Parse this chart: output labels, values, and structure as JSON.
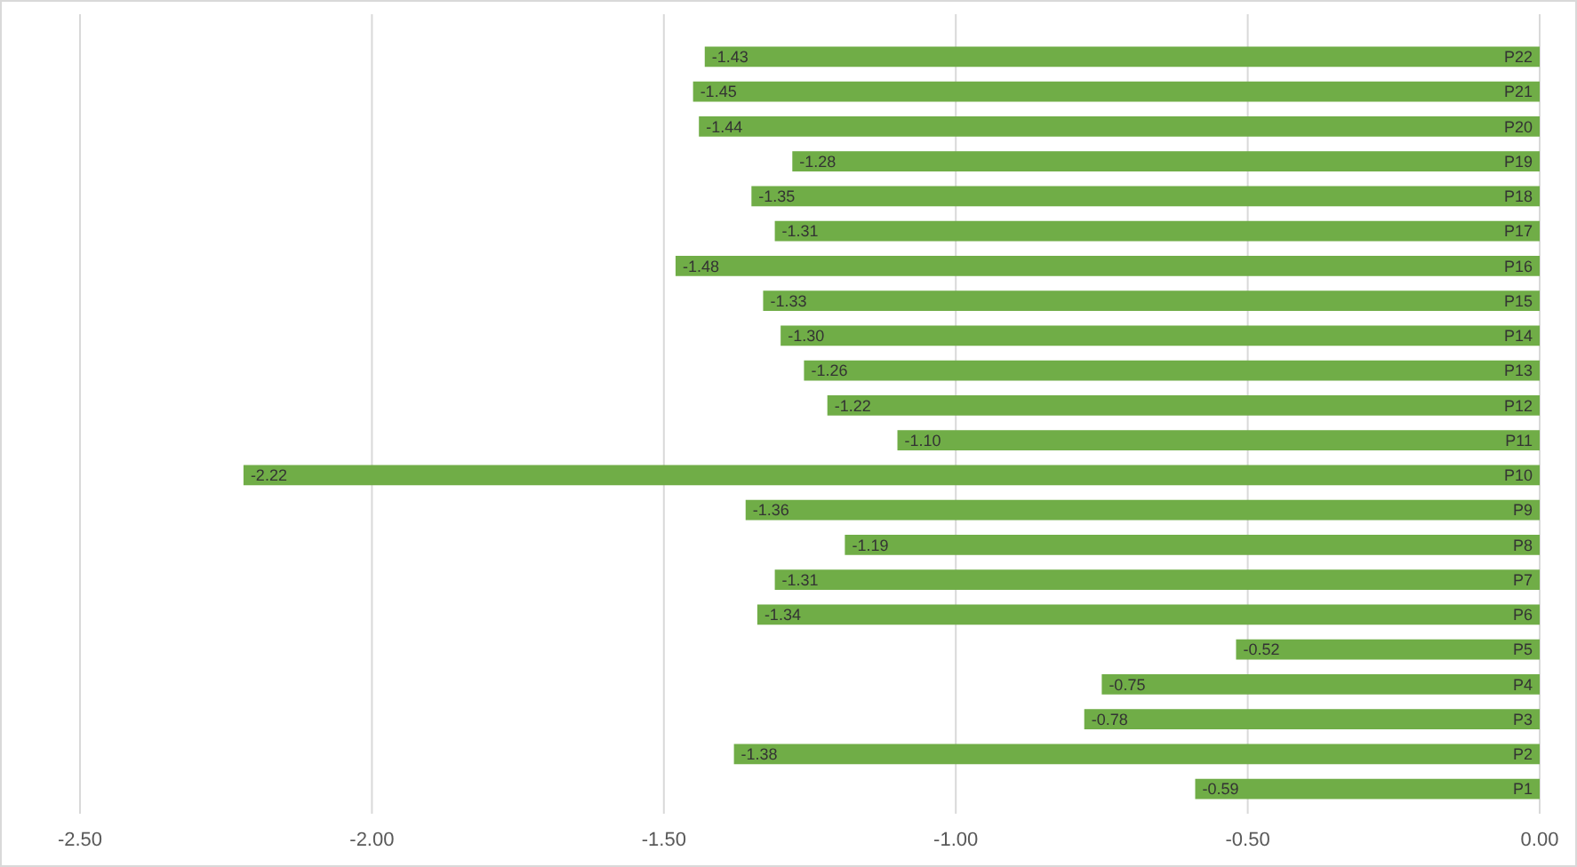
{
  "chart_data": {
    "type": "bar",
    "orientation": "horizontal",
    "categories": [
      "P22",
      "P21",
      "P20",
      "P19",
      "P18",
      "P17",
      "P16",
      "P15",
      "P14",
      "P13",
      "P12",
      "P11",
      "P10",
      "P9",
      "P8",
      "P7",
      "P6",
      "P5",
      "P4",
      "P3",
      "P2",
      "P1"
    ],
    "values": [
      -1.43,
      -1.45,
      -1.44,
      -1.28,
      -1.35,
      -1.31,
      -1.48,
      -1.33,
      -1.3,
      -1.26,
      -1.22,
      -1.1,
      -2.22,
      -1.36,
      -1.19,
      -1.31,
      -1.34,
      -0.52,
      -0.75,
      -0.78,
      -1.38,
      -0.59
    ],
    "value_labels": [
      "-1.43",
      "-1.45",
      "-1.44",
      "-1.28",
      "-1.35",
      "-1.31",
      "-1.48",
      "-1.33",
      "-1.30",
      "-1.26",
      "-1.22",
      "-1.10",
      "-2.22",
      "-1.36",
      "-1.19",
      "-1.31",
      "-1.34",
      "-0.52",
      "-0.75",
      "-0.78",
      "-1.38",
      "-0.59"
    ],
    "color": "#70ad47",
    "grid": "x",
    "xlim": [
      -2.5,
      0
    ],
    "xticks": [
      {
        "value": -2.5,
        "label": "-2.50"
      },
      {
        "value": -2,
        "label": "-2.00"
      },
      {
        "value": -1.5,
        "label": "-1.50"
      },
      {
        "value": -1,
        "label": "-1.00"
      },
      {
        "value": -0.5,
        "label": "-0.50"
      },
      {
        "value": 0,
        "label": "0.00"
      }
    ]
  }
}
